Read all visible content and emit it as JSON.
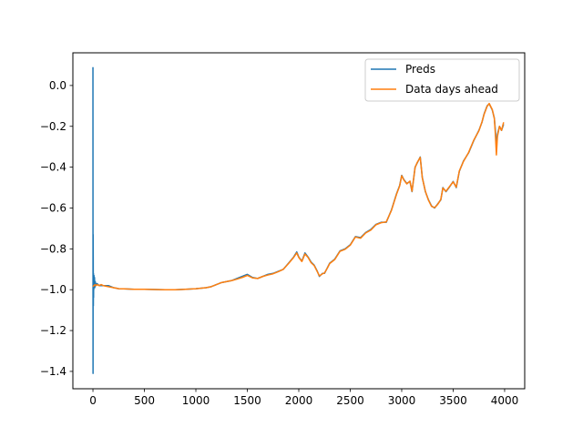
{
  "chart_data": {
    "type": "line",
    "title": "",
    "xlabel": "",
    "ylabel": "",
    "xlim": [
      -195,
      4195
    ],
    "ylim": [
      -1.485,
      0.16
    ],
    "x_ticks": [
      0,
      500,
      1000,
      1500,
      2000,
      2500,
      3000,
      3500,
      4000
    ],
    "y_ticks": [
      0.0,
      -0.2,
      -0.4,
      -0.6,
      -0.8,
      -1.0,
      -1.2,
      -1.4
    ],
    "y_tick_labels": [
      "0.0",
      "−0.2",
      "−0.4",
      "−0.6",
      "−0.8",
      "−1.0",
      "−1.2",
      "−1.4"
    ],
    "grid": false,
    "legend_position": "top-right",
    "series": [
      {
        "name": "Preds",
        "color": "#1f77b4",
        "x": [
          0,
          1,
          2,
          4,
          5,
          6,
          7,
          8,
          10,
          12,
          15,
          18,
          22,
          30,
          40,
          60,
          80,
          100,
          150,
          200,
          250,
          300,
          400,
          500,
          600,
          700,
          800,
          900,
          1000,
          1100,
          1150,
          1200,
          1250,
          1300,
          1350,
          1400,
          1450,
          1500,
          1550,
          1600,
          1650,
          1700,
          1750,
          1800,
          1850,
          1900,
          1950,
          1980,
          2000,
          2030,
          2060,
          2090,
          2120,
          2150,
          2180,
          2200,
          2230,
          2250,
          2280,
          2300,
          2350,
          2400,
          2450,
          2500,
          2550,
          2600,
          2650,
          2700,
          2750,
          2800,
          2850,
          2900,
          2950,
          2980,
          3000,
          3020,
          3050,
          3080,
          3100,
          3130,
          3150,
          3180,
          3200,
          3230,
          3260,
          3290,
          3320,
          3350,
          3380,
          3400,
          3430,
          3460,
          3500,
          3530,
          3560,
          3600,
          3650,
          3700,
          3750,
          3780,
          3800,
          3830,
          3850,
          3880,
          3900,
          3910,
          3920,
          3930,
          3950,
          3970,
          3990
        ],
        "y": [
          0.09,
          -1.41,
          -0.73,
          -1.08,
          -0.92,
          -1.04,
          -0.95,
          -1.0,
          -0.93,
          -0.97,
          -0.94,
          -0.99,
          -0.96,
          -0.98,
          -0.97,
          -0.98,
          -0.98,
          -0.98,
          -0.98,
          -0.99,
          -0.995,
          -0.996,
          -0.998,
          -0.998,
          -0.999,
          -1.0,
          -1.0,
          -0.998,
          -0.995,
          -0.99,
          -0.985,
          -0.975,
          -0.965,
          -0.96,
          -0.955,
          -0.945,
          -0.935,
          -0.925,
          -0.94,
          -0.945,
          -0.935,
          -0.925,
          -0.92,
          -0.91,
          -0.9,
          -0.87,
          -0.84,
          -0.815,
          -0.84,
          -0.86,
          -0.82,
          -0.84,
          -0.865,
          -0.88,
          -0.91,
          -0.935,
          -0.92,
          -0.92,
          -0.89,
          -0.87,
          -0.85,
          -0.81,
          -0.8,
          -0.78,
          -0.74,
          -0.745,
          -0.72,
          -0.705,
          -0.68,
          -0.67,
          -0.67,
          -0.61,
          -0.53,
          -0.49,
          -0.44,
          -0.46,
          -0.48,
          -0.47,
          -0.52,
          -0.4,
          -0.38,
          -0.35,
          -0.45,
          -0.52,
          -0.56,
          -0.59,
          -0.6,
          -0.58,
          -0.56,
          -0.5,
          -0.52,
          -0.5,
          -0.47,
          -0.5,
          -0.42,
          -0.37,
          -0.33,
          -0.27,
          -0.22,
          -0.18,
          -0.14,
          -0.1,
          -0.09,
          -0.12,
          -0.16,
          -0.22,
          -0.3,
          -0.24,
          -0.2,
          -0.22,
          -0.19
        ]
      },
      {
        "name": "Data days ahead",
        "color": "#ff7f0e",
        "x": [
          0,
          10,
          20,
          30,
          40,
          60,
          80,
          100,
          150,
          200,
          250,
          300,
          400,
          500,
          600,
          700,
          800,
          900,
          1000,
          1100,
          1150,
          1200,
          1250,
          1300,
          1350,
          1400,
          1450,
          1500,
          1550,
          1600,
          1650,
          1700,
          1750,
          1800,
          1850,
          1900,
          1950,
          1980,
          2000,
          2030,
          2060,
          2090,
          2120,
          2150,
          2180,
          2200,
          2230,
          2250,
          2280,
          2300,
          2350,
          2400,
          2450,
          2500,
          2550,
          2600,
          2650,
          2700,
          2750,
          2800,
          2850,
          2900,
          2950,
          2980,
          3000,
          3020,
          3050,
          3080,
          3100,
          3130,
          3150,
          3180,
          3200,
          3230,
          3260,
          3290,
          3320,
          3350,
          3380,
          3400,
          3430,
          3460,
          3500,
          3530,
          3560,
          3600,
          3650,
          3700,
          3750,
          3780,
          3800,
          3830,
          3850,
          3880,
          3900,
          3910,
          3920,
          3930,
          3950,
          3970,
          3990
        ],
        "y": [
          -0.985,
          -0.98,
          -0.975,
          -0.98,
          -0.975,
          -0.98,
          -0.975,
          -0.98,
          -0.985,
          -0.99,
          -0.995,
          -0.996,
          -0.998,
          -0.998,
          -0.999,
          -1.0,
          -1.0,
          -0.998,
          -0.995,
          -0.99,
          -0.985,
          -0.975,
          -0.965,
          -0.96,
          -0.955,
          -0.948,
          -0.94,
          -0.93,
          -0.942,
          -0.945,
          -0.935,
          -0.928,
          -0.922,
          -0.912,
          -0.9,
          -0.872,
          -0.842,
          -0.82,
          -0.842,
          -0.862,
          -0.825,
          -0.842,
          -0.868,
          -0.882,
          -0.912,
          -0.932,
          -0.922,
          -0.918,
          -0.892,
          -0.872,
          -0.852,
          -0.812,
          -0.802,
          -0.782,
          -0.742,
          -0.748,
          -0.722,
          -0.708,
          -0.682,
          -0.672,
          -0.668,
          -0.612,
          -0.532,
          -0.492,
          -0.442,
          -0.462,
          -0.482,
          -0.468,
          -0.518,
          -0.402,
          -0.378,
          -0.352,
          -0.452,
          -0.518,
          -0.562,
          -0.592,
          -0.598,
          -0.582,
          -0.558,
          -0.502,
          -0.518,
          -0.498,
          -0.472,
          -0.498,
          -0.418,
          -0.372,
          -0.328,
          -0.268,
          -0.222,
          -0.178,
          -0.142,
          -0.102,
          -0.088,
          -0.118,
          -0.162,
          -0.238,
          -0.34,
          -0.25,
          -0.2,
          -0.22,
          -0.18
        ]
      }
    ]
  }
}
